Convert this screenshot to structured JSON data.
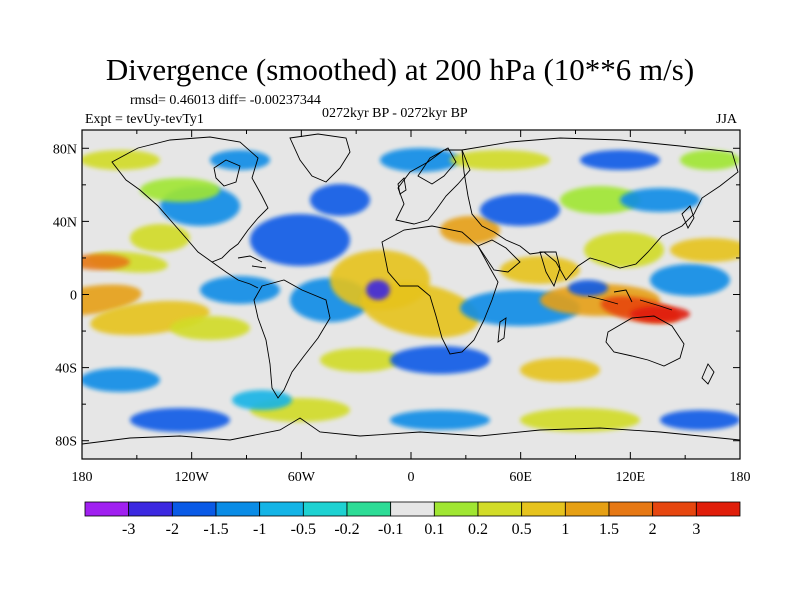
{
  "title": "Divergence (smoothed) at 200 hPa (10**6 m/s)",
  "stats": "rmsd= 0.46013 diff= -0.00237344",
  "experiment": "Expt = tevUy-tevTy1",
  "period": "0272kyr BP - 0272kyr BP",
  "season": "JJA",
  "map": {
    "background_color": "#e6e6e6",
    "lon_ticks": [
      "180",
      "120W",
      "60W",
      "0",
      "60E",
      "120E",
      "180"
    ],
    "lat_ticks": [
      "80N",
      "40N",
      "0",
      "40S",
      "80S"
    ]
  },
  "colorbar": {
    "colors": [
      "#a020f0",
      "#3c28e0",
      "#0a5ae6",
      "#0a8ce6",
      "#14b4e6",
      "#1ed2d2",
      "#2ddc96",
      "#e6e6e6",
      "#a0e632",
      "#d2dc28",
      "#e6c31e",
      "#e6a014",
      "#e67814",
      "#e6460f",
      "#e01e0a"
    ],
    "labels": [
      "-3",
      "-2",
      "-1.5",
      "-1",
      "-0.5",
      "-0.2",
      "-0.1",
      "0.1",
      "0.2",
      "0.5",
      "1",
      "1.5",
      "2",
      "3"
    ]
  }
}
